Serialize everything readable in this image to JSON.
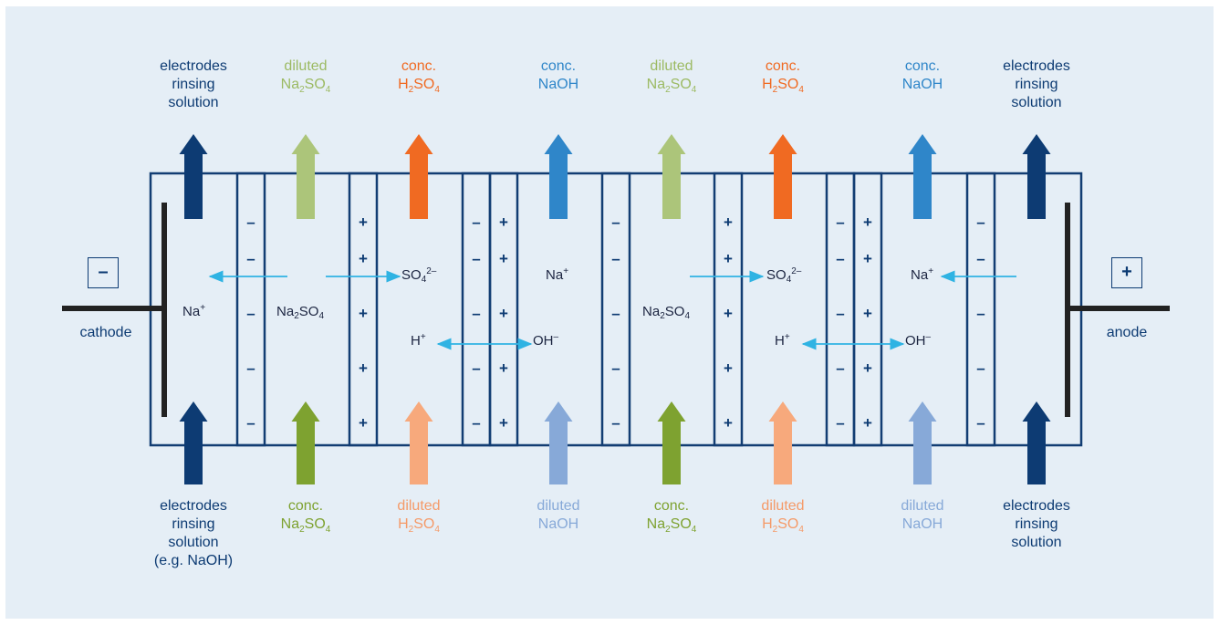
{
  "colors": {
    "frame": "#123d73",
    "electrode_navy": "#0d3b73",
    "green_light": "#acc57a",
    "green_dark": "#7ea230",
    "orange_dark": "#f06a22",
    "orange_light": "#f7a97c",
    "blue_dark": "#2f86c9",
    "blue_light": "#87a9d8",
    "ion_arrow": "#2fb3e3"
  },
  "top_labels": [
    {
      "lines": [
        "electrodes",
        "rinsing",
        "solution"
      ],
      "color": "#0d3b73"
    },
    {
      "lines": [
        "diluted",
        "Na<sub>2</sub>SO<sub>4</sub>"
      ],
      "color": "#9cba63"
    },
    {
      "lines": [
        "conc.",
        "H<sub>2</sub>SO<sub>4</sub>"
      ],
      "color": "#f06a22"
    },
    {
      "lines": [
        "conc.",
        "NaOH"
      ],
      "color": "#2f86c9"
    },
    {
      "lines": [
        "diluted",
        "Na<sub>2</sub>SO<sub>4</sub>"
      ],
      "color": "#9cba63"
    },
    {
      "lines": [
        "conc.",
        "H<sub>2</sub>SO<sub>4</sub>"
      ],
      "color": "#f06a22"
    },
    {
      "lines": [
        "conc.",
        "NaOH"
      ],
      "color": "#2f86c9"
    },
    {
      "lines": [
        "electrodes",
        "rinsing",
        "solution"
      ],
      "color": "#0d3b73"
    }
  ],
  "bottom_labels": [
    {
      "lines": [
        "electrodes",
        "rinsing",
        "solution",
        "(e.g. NaOH)"
      ],
      "color": "#0d3b73"
    },
    {
      "lines": [
        "conc.",
        "Na<sub>2</sub>SO<sub>4</sub>"
      ],
      "color": "#7ea230"
    },
    {
      "lines": [
        "diluted",
        "H<sub>2</sub>SO<sub>4</sub>"
      ],
      "color": "#f59a68"
    },
    {
      "lines": [
        "diluted",
        "NaOH"
      ],
      "color": "#87a9d8"
    },
    {
      "lines": [
        "conc.",
        "Na<sub>2</sub>SO<sub>4</sub>"
      ],
      "color": "#7ea230"
    },
    {
      "lines": [
        "diluted",
        "H<sub>2</sub>SO<sub>4</sub>"
      ],
      "color": "#f59a68"
    },
    {
      "lines": [
        "diluted",
        "NaOH"
      ],
      "color": "#87a9d8"
    },
    {
      "lines": [
        "electrodes",
        "rinsing",
        "solution"
      ],
      "color": "#0d3b73"
    }
  ],
  "ions": {
    "na_plus": "Na<sup>+</sup>",
    "na2so4": "Na<sub>2</sub>SO<sub>4</sub>",
    "so4": "SO<sub>4</sub><sup>2–</sup>",
    "h_plus": "H<sup>+</sup>",
    "oh_minus": "OH<sup>–</sup>"
  },
  "electrodes": {
    "cathode_label": "cathode",
    "anode_label": "anode",
    "cathode_sign": "–",
    "anode_sign": "+"
  },
  "membrane_signs": {
    "minus": "–",
    "plus": "+"
  }
}
